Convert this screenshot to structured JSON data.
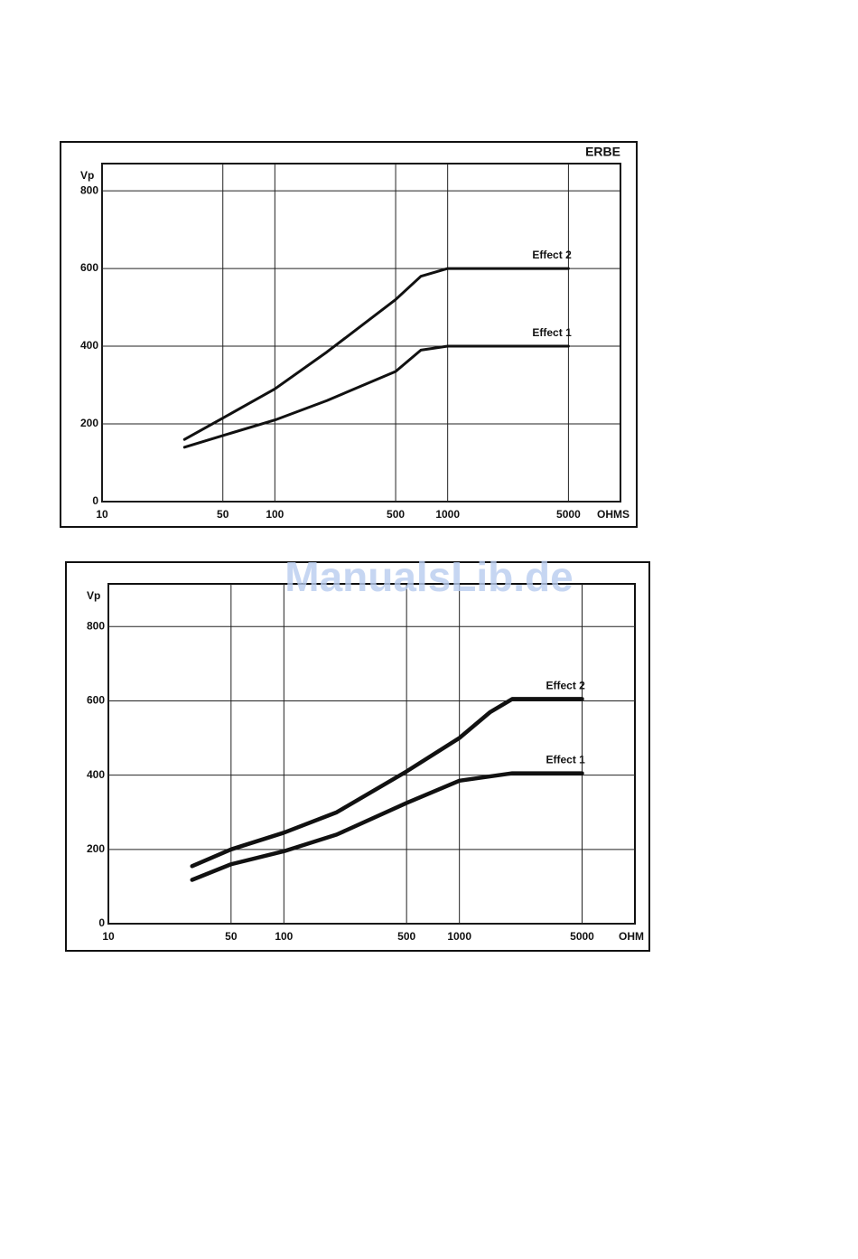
{
  "watermark": "ManualsLib.de",
  "chart_data": [
    {
      "type": "line",
      "title": "ERBE",
      "y_label": "Vp",
      "x_label": "OHMS",
      "xscale": "log",
      "grid": true,
      "xlim": [
        10,
        10000
      ],
      "ylim": [
        0,
        870
      ],
      "xticks": [
        10,
        50,
        100,
        500,
        1000,
        5000
      ],
      "yticks": [
        0,
        200,
        400,
        600,
        800
      ],
      "series": [
        {
          "name": "Effect 2",
          "color": "#111111",
          "x": [
            30,
            50,
            100,
            200,
            500,
            700,
            1000,
            2000,
            5000
          ],
          "values": [
            160,
            215,
            290,
            385,
            520,
            580,
            600,
            600,
            600
          ]
        },
        {
          "name": "Effect 1",
          "color": "#111111",
          "x": [
            30,
            50,
            100,
            200,
            500,
            700,
            1000,
            5000
          ],
          "values": [
            140,
            170,
            210,
            260,
            335,
            390,
            400,
            400
          ]
        }
      ]
    },
    {
      "type": "line",
      "y_label": "Vp",
      "x_label": "OHM",
      "xscale": "log",
      "grid": true,
      "xlim": [
        10,
        10000
      ],
      "ylim": [
        0,
        915
      ],
      "xticks": [
        10,
        50,
        100,
        500,
        1000,
        5000
      ],
      "yticks": [
        0,
        200,
        400,
        600,
        800
      ],
      "series": [
        {
          "name": "Effect 2",
          "color": "#111111",
          "x": [
            30,
            50,
            100,
            200,
            500,
            1000,
            1500,
            2000,
            5000
          ],
          "values": [
            155,
            200,
            245,
            300,
            410,
            500,
            570,
            605,
            605
          ]
        },
        {
          "name": "Effect 1",
          "color": "#111111",
          "x": [
            30,
            50,
            100,
            200,
            500,
            1000,
            2000,
            5000
          ],
          "values": [
            118,
            160,
            195,
            240,
            325,
            385,
            405,
            405
          ]
        }
      ]
    }
  ]
}
